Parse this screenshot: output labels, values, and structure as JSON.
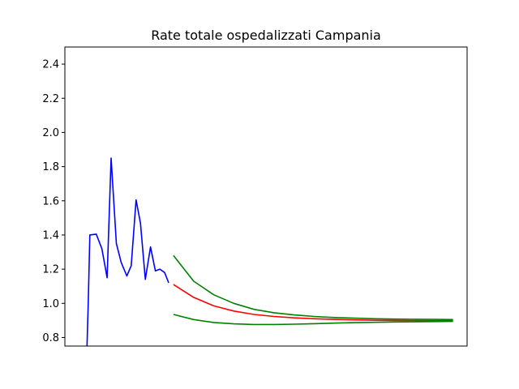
{
  "chart_data": {
    "type": "line",
    "title": "Rate totale ospedalizzati Campania",
    "xlabel": "",
    "ylabel": "",
    "xlim": [
      0,
      100
    ],
    "ylim": [
      0.75,
      2.5
    ],
    "yticks": [
      0.8,
      1.0,
      1.2,
      1.4,
      1.6,
      1.8,
      2.0,
      2.2,
      2.4
    ],
    "grid": false,
    "series": [
      {
        "color": "#0000ff",
        "points": [
          [
            5.5,
            0.75
          ],
          [
            5.8,
            1.0
          ],
          [
            6.2,
            1.4
          ],
          [
            7.8,
            1.405
          ],
          [
            9.2,
            1.32
          ],
          [
            10.5,
            1.15
          ],
          [
            11.5,
            1.85
          ],
          [
            12.8,
            1.35
          ],
          [
            14.0,
            1.24
          ],
          [
            15.4,
            1.16
          ],
          [
            16.5,
            1.22
          ],
          [
            17.7,
            1.605
          ],
          [
            18.8,
            1.47
          ],
          [
            20.0,
            1.14
          ],
          [
            21.3,
            1.33
          ],
          [
            22.5,
            1.19
          ],
          [
            23.6,
            1.2
          ],
          [
            24.8,
            1.18
          ],
          [
            25.8,
            1.12
          ]
        ]
      },
      {
        "color": "#ff0000",
        "points": [
          [
            27.0,
            1.11
          ],
          [
            32,
            1.035
          ],
          [
            37,
            0.985
          ],
          [
            42,
            0.955
          ],
          [
            47,
            0.935
          ],
          [
            52,
            0.923
          ],
          [
            57,
            0.915
          ],
          [
            62,
            0.91
          ],
          [
            67,
            0.906
          ],
          [
            72,
            0.903
          ],
          [
            77,
            0.901
          ],
          [
            82,
            0.9
          ],
          [
            87,
            0.899
          ],
          [
            92,
            0.898
          ],
          [
            96.5,
            0.898
          ]
        ]
      },
      {
        "color": "#008000",
        "points": [
          [
            27.0,
            1.28
          ],
          [
            32,
            1.13
          ],
          [
            37,
            1.05
          ],
          [
            42,
            1.0
          ],
          [
            47,
            0.965
          ],
          [
            52,
            0.945
          ],
          [
            57,
            0.932
          ],
          [
            62,
            0.923
          ],
          [
            67,
            0.917
          ],
          [
            72,
            0.913
          ],
          [
            77,
            0.91
          ],
          [
            82,
            0.908
          ],
          [
            87,
            0.907
          ],
          [
            92,
            0.906
          ],
          [
            96.5,
            0.905
          ]
        ]
      },
      {
        "color": "#008000",
        "points": [
          [
            27.0,
            0.935
          ],
          [
            32,
            0.905
          ],
          [
            37,
            0.888
          ],
          [
            42,
            0.88
          ],
          [
            47,
            0.876
          ],
          [
            52,
            0.876
          ],
          [
            57,
            0.878
          ],
          [
            62,
            0.881
          ],
          [
            67,
            0.884
          ],
          [
            72,
            0.887
          ],
          [
            77,
            0.889
          ],
          [
            82,
            0.891
          ],
          [
            87,
            0.892
          ],
          [
            92,
            0.893
          ],
          [
            96.5,
            0.894
          ]
        ]
      }
    ]
  }
}
